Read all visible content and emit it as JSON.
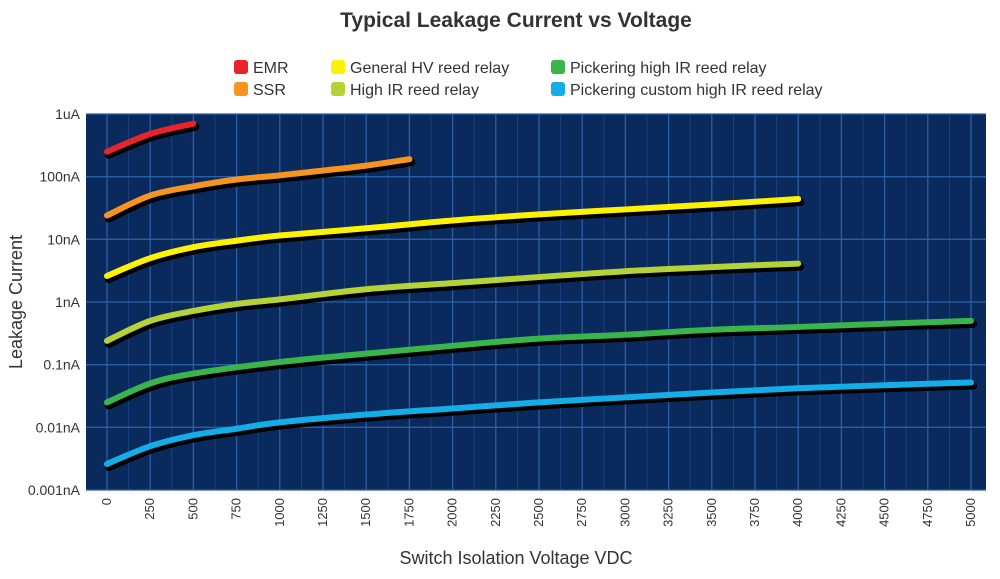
{
  "chart_data": {
    "type": "line",
    "title": "Typical Leakage Current vs Voltage",
    "xlabel": "Switch Isolation Voltage VDC",
    "ylabel": "Leakage Current",
    "xlim": [
      0,
      5000
    ],
    "ylim_nA": [
      0.001,
      1000
    ],
    "yscale": "log",
    "grid": true,
    "legend_position": "top",
    "plot_background": "#0a2a5e",
    "x_ticks": [
      0,
      250,
      500,
      750,
      1000,
      1250,
      1500,
      1750,
      2000,
      2250,
      2500,
      2750,
      3000,
      3250,
      3500,
      3750,
      4000,
      4250,
      4500,
      4750,
      5000
    ],
    "x_tick_labels": [
      "0",
      "250",
      "500",
      "750",
      "1000",
      "1250",
      "1500",
      "1750",
      "2000",
      "2250",
      "2500",
      "2750",
      "3000",
      "3250",
      "3500",
      "3750",
      "4000",
      "4250",
      "4500",
      "4750",
      "5000"
    ],
    "y_ticks_nA": [
      1000,
      100,
      10,
      1,
      0.1,
      0.01,
      0.001
    ],
    "y_tick_labels": [
      "1uA",
      "100nA",
      "10nA",
      "1nA",
      "0.1nA",
      "0.01nA",
      "0.001nA"
    ],
    "series": [
      {
        "name": "EMR",
        "color": "#e8232a",
        "points": [
          [
            0,
            250
          ],
          [
            250,
            480
          ],
          [
            500,
            700
          ]
        ]
      },
      {
        "name": "SSR",
        "color": "#f7941d",
        "points": [
          [
            0,
            24
          ],
          [
            250,
            50
          ],
          [
            500,
            70
          ],
          [
            750,
            90
          ],
          [
            1000,
            105
          ],
          [
            1250,
            125
          ],
          [
            1500,
            150
          ],
          [
            1750,
            190
          ]
        ]
      },
      {
        "name": "General HV reed relay",
        "color": "#fff200",
        "points": [
          [
            0,
            2.6
          ],
          [
            250,
            5
          ],
          [
            500,
            7.5
          ],
          [
            750,
            9.5
          ],
          [
            1000,
            11.5
          ],
          [
            1500,
            15
          ],
          [
            2000,
            20
          ],
          [
            2500,
            25
          ],
          [
            3000,
            30
          ],
          [
            3500,
            36
          ],
          [
            4000,
            44
          ]
        ]
      },
      {
        "name": "High IR reed relay",
        "color": "#b5d334",
        "points": [
          [
            0,
            0.24
          ],
          [
            250,
            0.5
          ],
          [
            500,
            0.72
          ],
          [
            750,
            0.93
          ],
          [
            1000,
            1.1
          ],
          [
            1500,
            1.6
          ],
          [
            2000,
            2.0
          ],
          [
            2500,
            2.5
          ],
          [
            3000,
            3.1
          ],
          [
            3500,
            3.6
          ],
          [
            4000,
            4.1
          ]
        ]
      },
      {
        "name": "Pickering high IR reed relay",
        "color": "#3ab54a",
        "points": [
          [
            0,
            0.025
          ],
          [
            250,
            0.05
          ],
          [
            500,
            0.072
          ],
          [
            1000,
            0.11
          ],
          [
            1500,
            0.15
          ],
          [
            2000,
            0.2
          ],
          [
            2500,
            0.26
          ],
          [
            3000,
            0.3
          ],
          [
            3500,
            0.36
          ],
          [
            4000,
            0.4
          ],
          [
            4500,
            0.45
          ],
          [
            5000,
            0.5
          ]
        ]
      },
      {
        "name": "Pickering custom high IR reed relay",
        "color": "#13aee8",
        "points": [
          [
            0,
            0.0026
          ],
          [
            250,
            0.005
          ],
          [
            500,
            0.0075
          ],
          [
            750,
            0.0095
          ],
          [
            1000,
            0.012
          ],
          [
            1500,
            0.016
          ],
          [
            2000,
            0.02
          ],
          [
            2500,
            0.025
          ],
          [
            3000,
            0.03
          ],
          [
            3500,
            0.036
          ],
          [
            4000,
            0.042
          ],
          [
            4500,
            0.047
          ],
          [
            5000,
            0.052
          ]
        ]
      }
    ]
  }
}
